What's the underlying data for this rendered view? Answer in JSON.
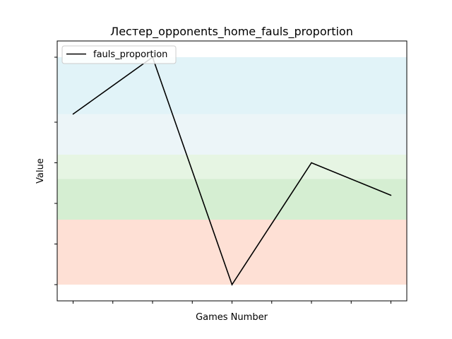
{
  "chart_data": {
    "type": "line",
    "title": "Лестер_opponents_home_fauls_proportion",
    "xlabel": "Games Number",
    "ylabel": "Value",
    "x": [
      1,
      2,
      3,
      4,
      5
    ],
    "xlim": [
      0.8,
      5.2
    ],
    "ylim": [
      0.3,
      0.62
    ],
    "series": [
      {
        "name": "fauls_proportion",
        "color": "#000000",
        "values": [
          0.53,
          0.6,
          0.32,
          0.47,
          0.43
        ]
      }
    ],
    "bands": [
      {
        "from": 0.32,
        "to": 0.4,
        "color": "#fcbba1"
      },
      {
        "from": 0.4,
        "to": 0.45,
        "color": "#a1d99b"
      },
      {
        "from": 0.45,
        "to": 0.48,
        "color": "#c7e9c0"
      },
      {
        "from": 0.48,
        "to": 0.53,
        "color": "#d5e8ef"
      },
      {
        "from": 0.53,
        "to": 0.6,
        "color": "#bde4ef"
      }
    ],
    "band_opacity": 0.45,
    "x_ticks": [
      1,
      1.5,
      2,
      2.5,
      3,
      3.5,
      4,
      4.5,
      5
    ],
    "y_ticks": [
      0.32,
      0.37,
      0.42,
      0.47,
      0.52,
      0.6
    ],
    "tick_labels_visible": false,
    "legend_position": "top-left",
    "grid": false
  }
}
